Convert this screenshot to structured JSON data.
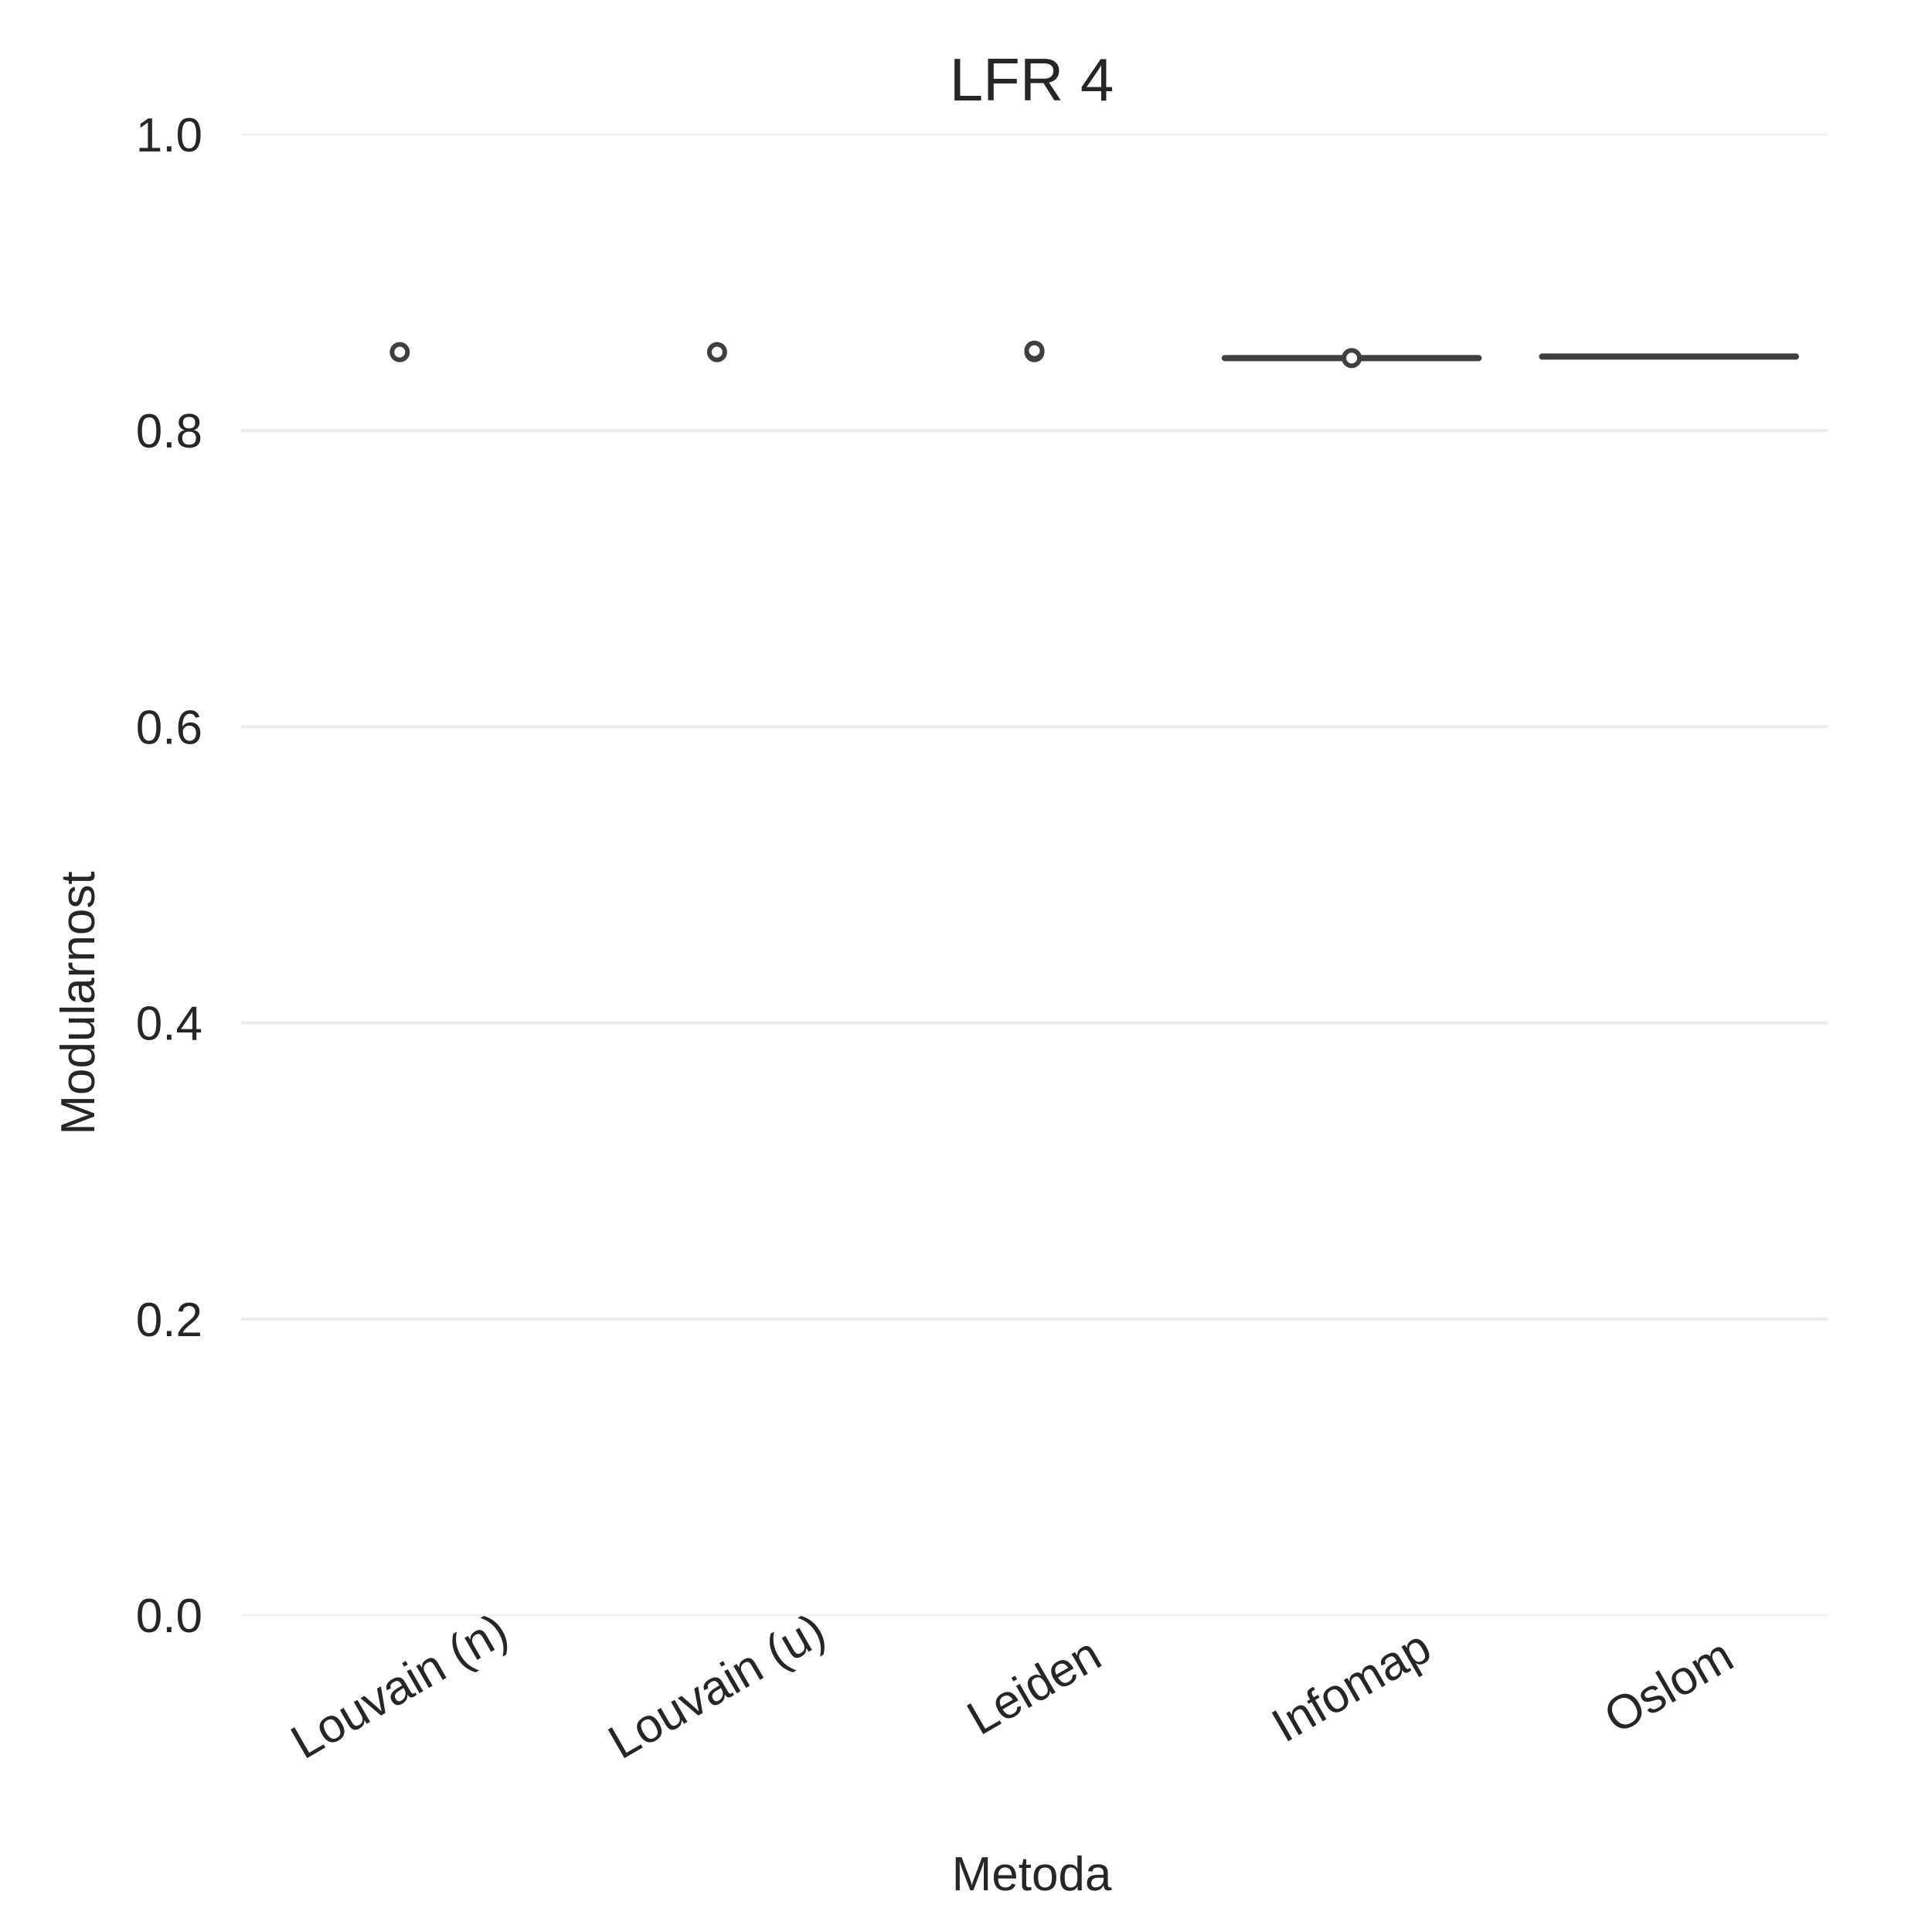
{
  "chart_data": {
    "type": "box",
    "title": "LFR 4",
    "xlabel": "Metoda",
    "ylabel": "Modularnost",
    "categories": [
      "Louvain (n)",
      "Louvain (u)",
      "Leiden",
      "Infomap",
      "Oslom"
    ],
    "ylim": [
      0.0,
      1.0
    ],
    "yticks": [
      0.0,
      0.2,
      0.4,
      0.6,
      0.8,
      1.0
    ],
    "ytick_labels": [
      "0.0",
      "0.2",
      "0.4",
      "0.6",
      "0.8",
      "1.0"
    ],
    "boxes": [
      {
        "category": "Louvain (n)",
        "median": 0.853,
        "q1": 0.853,
        "q3": 0.853,
        "whisker_low": 0.853,
        "whisker_high": 0.853,
        "outliers": [
          0.853
        ],
        "show_line": false
      },
      {
        "category": "Louvain (u)",
        "median": 0.853,
        "q1": 0.853,
        "q3": 0.853,
        "whisker_low": 0.853,
        "whisker_high": 0.853,
        "outliers": [
          0.853
        ],
        "show_line": false
      },
      {
        "category": "Leiden",
        "median": 0.853,
        "q1": 0.853,
        "q3": 0.853,
        "whisker_low": 0.853,
        "whisker_high": 0.853,
        "outliers": [
          0.853,
          0.854
        ],
        "show_line": false
      },
      {
        "category": "Infomap",
        "median": 0.849,
        "q1": 0.849,
        "q3": 0.849,
        "whisker_low": 0.849,
        "whisker_high": 0.849,
        "outliers": [
          0.849
        ],
        "show_line": true
      },
      {
        "category": "Oslom",
        "median": 0.85,
        "q1": 0.85,
        "q3": 0.85,
        "whisker_low": 0.85,
        "whisker_high": 0.85,
        "outliers": [],
        "show_line": true
      }
    ],
    "grid": true,
    "colors": {
      "box": "#3f3f3f",
      "grid": "#ebebeb",
      "text": "#262626"
    }
  }
}
